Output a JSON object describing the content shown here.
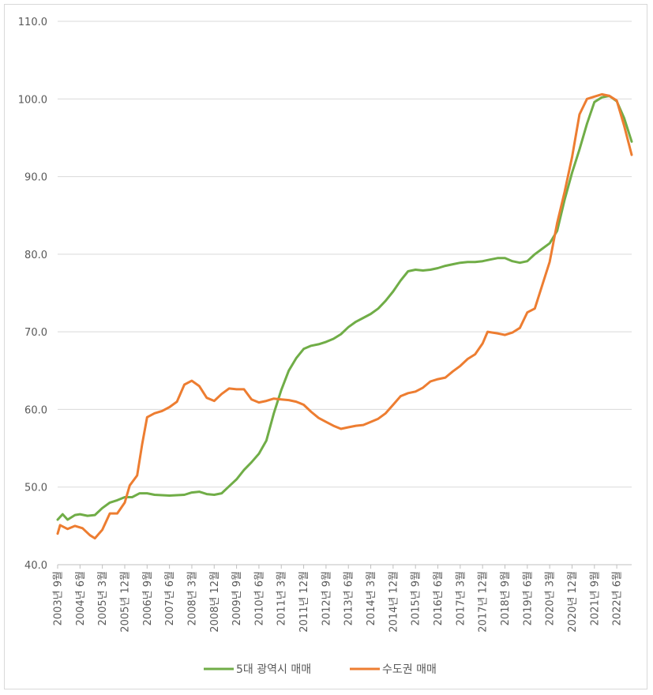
{
  "chart_data": {
    "type": "line",
    "title": "",
    "xlabel": "",
    "ylabel": "",
    "ylim": [
      40,
      110
    ],
    "yticks": [
      "40.0",
      "50.0",
      "60.0",
      "70.0",
      "80.0",
      "90.0",
      "100.0",
      "110.0"
    ],
    "grid": true,
    "legend": "bottom",
    "x_start": "2003년 9월",
    "x_end": "2022년 12월",
    "xticks": [
      "2003년 9월",
      "2004년 6월",
      "2005년 3월",
      "2005년 12월",
      "2006년 9월",
      "2007년 6월",
      "2008년 3월",
      "2008년 12월",
      "2009년 9월",
      "2010년 6월",
      "2011년 3월",
      "2011년 12월",
      "2012년 9월",
      "2013년 6월",
      "2014년 3월",
      "2014년 12월",
      "2015년 9월",
      "2016년 6월",
      "2017년 3월",
      "2017년 12월",
      "2018년 9월",
      "2019년 6월",
      "2020년 3월",
      "2020년 12월",
      "2021년 9월",
      "2022년 6월"
    ],
    "series": [
      {
        "name": "5대 광역시 매매",
        "color": "#70ad47",
        "points": [
          [
            "2003-09",
            45.8
          ],
          [
            "2003-11",
            46.5
          ],
          [
            "2004-01",
            45.8
          ],
          [
            "2004-04",
            46.4
          ],
          [
            "2004-06",
            46.5
          ],
          [
            "2004-09",
            46.3
          ],
          [
            "2004-12",
            46.4
          ],
          [
            "2005-03",
            47.3
          ],
          [
            "2005-06",
            48.0
          ],
          [
            "2005-09",
            48.3
          ],
          [
            "2005-12",
            48.7
          ],
          [
            "2006-03",
            48.7
          ],
          [
            "2006-06",
            49.2
          ],
          [
            "2006-09",
            49.2
          ],
          [
            "2006-12",
            49.0
          ],
          [
            "2007-06",
            48.9
          ],
          [
            "2007-12",
            49.0
          ],
          [
            "2008-03",
            49.3
          ],
          [
            "2008-06",
            49.4
          ],
          [
            "2008-09",
            49.1
          ],
          [
            "2008-12",
            49.0
          ],
          [
            "2009-03",
            49.2
          ],
          [
            "2009-06",
            50.1
          ],
          [
            "2009-09",
            51.0
          ],
          [
            "2009-12",
            52.2
          ],
          [
            "2010-03",
            53.2
          ],
          [
            "2010-06",
            54.3
          ],
          [
            "2010-09",
            56.0
          ],
          [
            "2010-12",
            59.5
          ],
          [
            "2011-03",
            62.5
          ],
          [
            "2011-06",
            65.0
          ],
          [
            "2011-09",
            66.6
          ],
          [
            "2011-12",
            67.8
          ],
          [
            "2012-03",
            68.2
          ],
          [
            "2012-06",
            68.4
          ],
          [
            "2012-09",
            68.7
          ],
          [
            "2012-12",
            69.1
          ],
          [
            "2013-03",
            69.7
          ],
          [
            "2013-06",
            70.6
          ],
          [
            "2013-09",
            71.3
          ],
          [
            "2013-12",
            71.8
          ],
          [
            "2014-03",
            72.3
          ],
          [
            "2014-06",
            73.0
          ],
          [
            "2014-09",
            74.0
          ],
          [
            "2014-12",
            75.2
          ],
          [
            "2015-03",
            76.6
          ],
          [
            "2015-06",
            77.8
          ],
          [
            "2015-09",
            78.0
          ],
          [
            "2015-12",
            77.9
          ],
          [
            "2016-03",
            78.0
          ],
          [
            "2016-06",
            78.2
          ],
          [
            "2016-09",
            78.5
          ],
          [
            "2016-12",
            78.7
          ],
          [
            "2017-03",
            78.9
          ],
          [
            "2017-06",
            79.0
          ],
          [
            "2017-09",
            79.0
          ],
          [
            "2017-12",
            79.1
          ],
          [
            "2018-03",
            79.3
          ],
          [
            "2018-06",
            79.5
          ],
          [
            "2018-09",
            79.5
          ],
          [
            "2018-12",
            79.1
          ],
          [
            "2019-03",
            78.9
          ],
          [
            "2019-06",
            79.1
          ],
          [
            "2019-09",
            80.0
          ],
          [
            "2019-12",
            80.7
          ],
          [
            "2020-03",
            81.4
          ],
          [
            "2020-06",
            83.0
          ],
          [
            "2020-09",
            87.0
          ],
          [
            "2020-12",
            90.5
          ],
          [
            "2021-03",
            93.5
          ],
          [
            "2021-06",
            96.8
          ],
          [
            "2021-09",
            99.6
          ],
          [
            "2021-12",
            100.2
          ],
          [
            "2022-03",
            100.4
          ],
          [
            "2022-06",
            99.7
          ],
          [
            "2022-09",
            97.5
          ],
          [
            "2022-12",
            94.5
          ]
        ]
      },
      {
        "name": "수도권 매매",
        "color": "#ed7d31",
        "points": [
          [
            "2003-09",
            44.0
          ],
          [
            "2003-10",
            45.1
          ],
          [
            "2004-01",
            44.6
          ],
          [
            "2004-04",
            45.0
          ],
          [
            "2004-07",
            44.7
          ],
          [
            "2004-10",
            43.8
          ],
          [
            "2004-12",
            43.4
          ],
          [
            "2005-03",
            44.5
          ],
          [
            "2005-06",
            46.6
          ],
          [
            "2005-09",
            46.6
          ],
          [
            "2005-12",
            48.0
          ],
          [
            "2006-02",
            50.2
          ],
          [
            "2006-05",
            51.5
          ],
          [
            "2006-07",
            55.5
          ],
          [
            "2006-09",
            59.0
          ],
          [
            "2006-12",
            59.5
          ],
          [
            "2007-03",
            59.8
          ],
          [
            "2007-06",
            60.3
          ],
          [
            "2007-09",
            61.0
          ],
          [
            "2007-12",
            63.2
          ],
          [
            "2008-03",
            63.7
          ],
          [
            "2008-06",
            63.0
          ],
          [
            "2008-09",
            61.5
          ],
          [
            "2008-12",
            61.1
          ],
          [
            "2009-03",
            62.0
          ],
          [
            "2009-06",
            62.7
          ],
          [
            "2009-09",
            62.6
          ],
          [
            "2009-12",
            62.6
          ],
          [
            "2010-03",
            61.3
          ],
          [
            "2010-06",
            60.9
          ],
          [
            "2010-09",
            61.1
          ],
          [
            "2010-12",
            61.4
          ],
          [
            "2011-03",
            61.3
          ],
          [
            "2011-06",
            61.2
          ],
          [
            "2011-09",
            61.0
          ],
          [
            "2011-12",
            60.6
          ],
          [
            "2012-03",
            59.7
          ],
          [
            "2012-06",
            58.9
          ],
          [
            "2012-09",
            58.4
          ],
          [
            "2012-12",
            57.9
          ],
          [
            "2013-03",
            57.5
          ],
          [
            "2013-06",
            57.7
          ],
          [
            "2013-09",
            57.9
          ],
          [
            "2013-12",
            58.0
          ],
          [
            "2014-03",
            58.4
          ],
          [
            "2014-06",
            58.8
          ],
          [
            "2014-09",
            59.5
          ],
          [
            "2014-12",
            60.6
          ],
          [
            "2015-03",
            61.7
          ],
          [
            "2015-06",
            62.1
          ],
          [
            "2015-09",
            62.3
          ],
          [
            "2015-12",
            62.8
          ],
          [
            "2016-03",
            63.6
          ],
          [
            "2016-06",
            63.9
          ],
          [
            "2016-09",
            64.1
          ],
          [
            "2016-12",
            64.9
          ],
          [
            "2017-03",
            65.6
          ],
          [
            "2017-06",
            66.5
          ],
          [
            "2017-09",
            67.1
          ],
          [
            "2017-12",
            68.5
          ],
          [
            "2018-02",
            70.0
          ],
          [
            "2018-06",
            69.8
          ],
          [
            "2018-09",
            69.6
          ],
          [
            "2018-12",
            69.9
          ],
          [
            "2019-03",
            70.5
          ],
          [
            "2019-06",
            72.5
          ],
          [
            "2019-09",
            73.0
          ],
          [
            "2019-12",
            76.0
          ],
          [
            "2020-03",
            79.0
          ],
          [
            "2020-06",
            84.0
          ],
          [
            "2020-09",
            88.0
          ],
          [
            "2020-12",
            92.5
          ],
          [
            "2021-03",
            98.0
          ],
          [
            "2021-06",
            100.0
          ],
          [
            "2021-09",
            100.3
          ],
          [
            "2021-12",
            100.6
          ],
          [
            "2022-03",
            100.4
          ],
          [
            "2022-06",
            99.8
          ],
          [
            "2022-09",
            96.5
          ],
          [
            "2022-12",
            92.8
          ]
        ]
      }
    ]
  }
}
